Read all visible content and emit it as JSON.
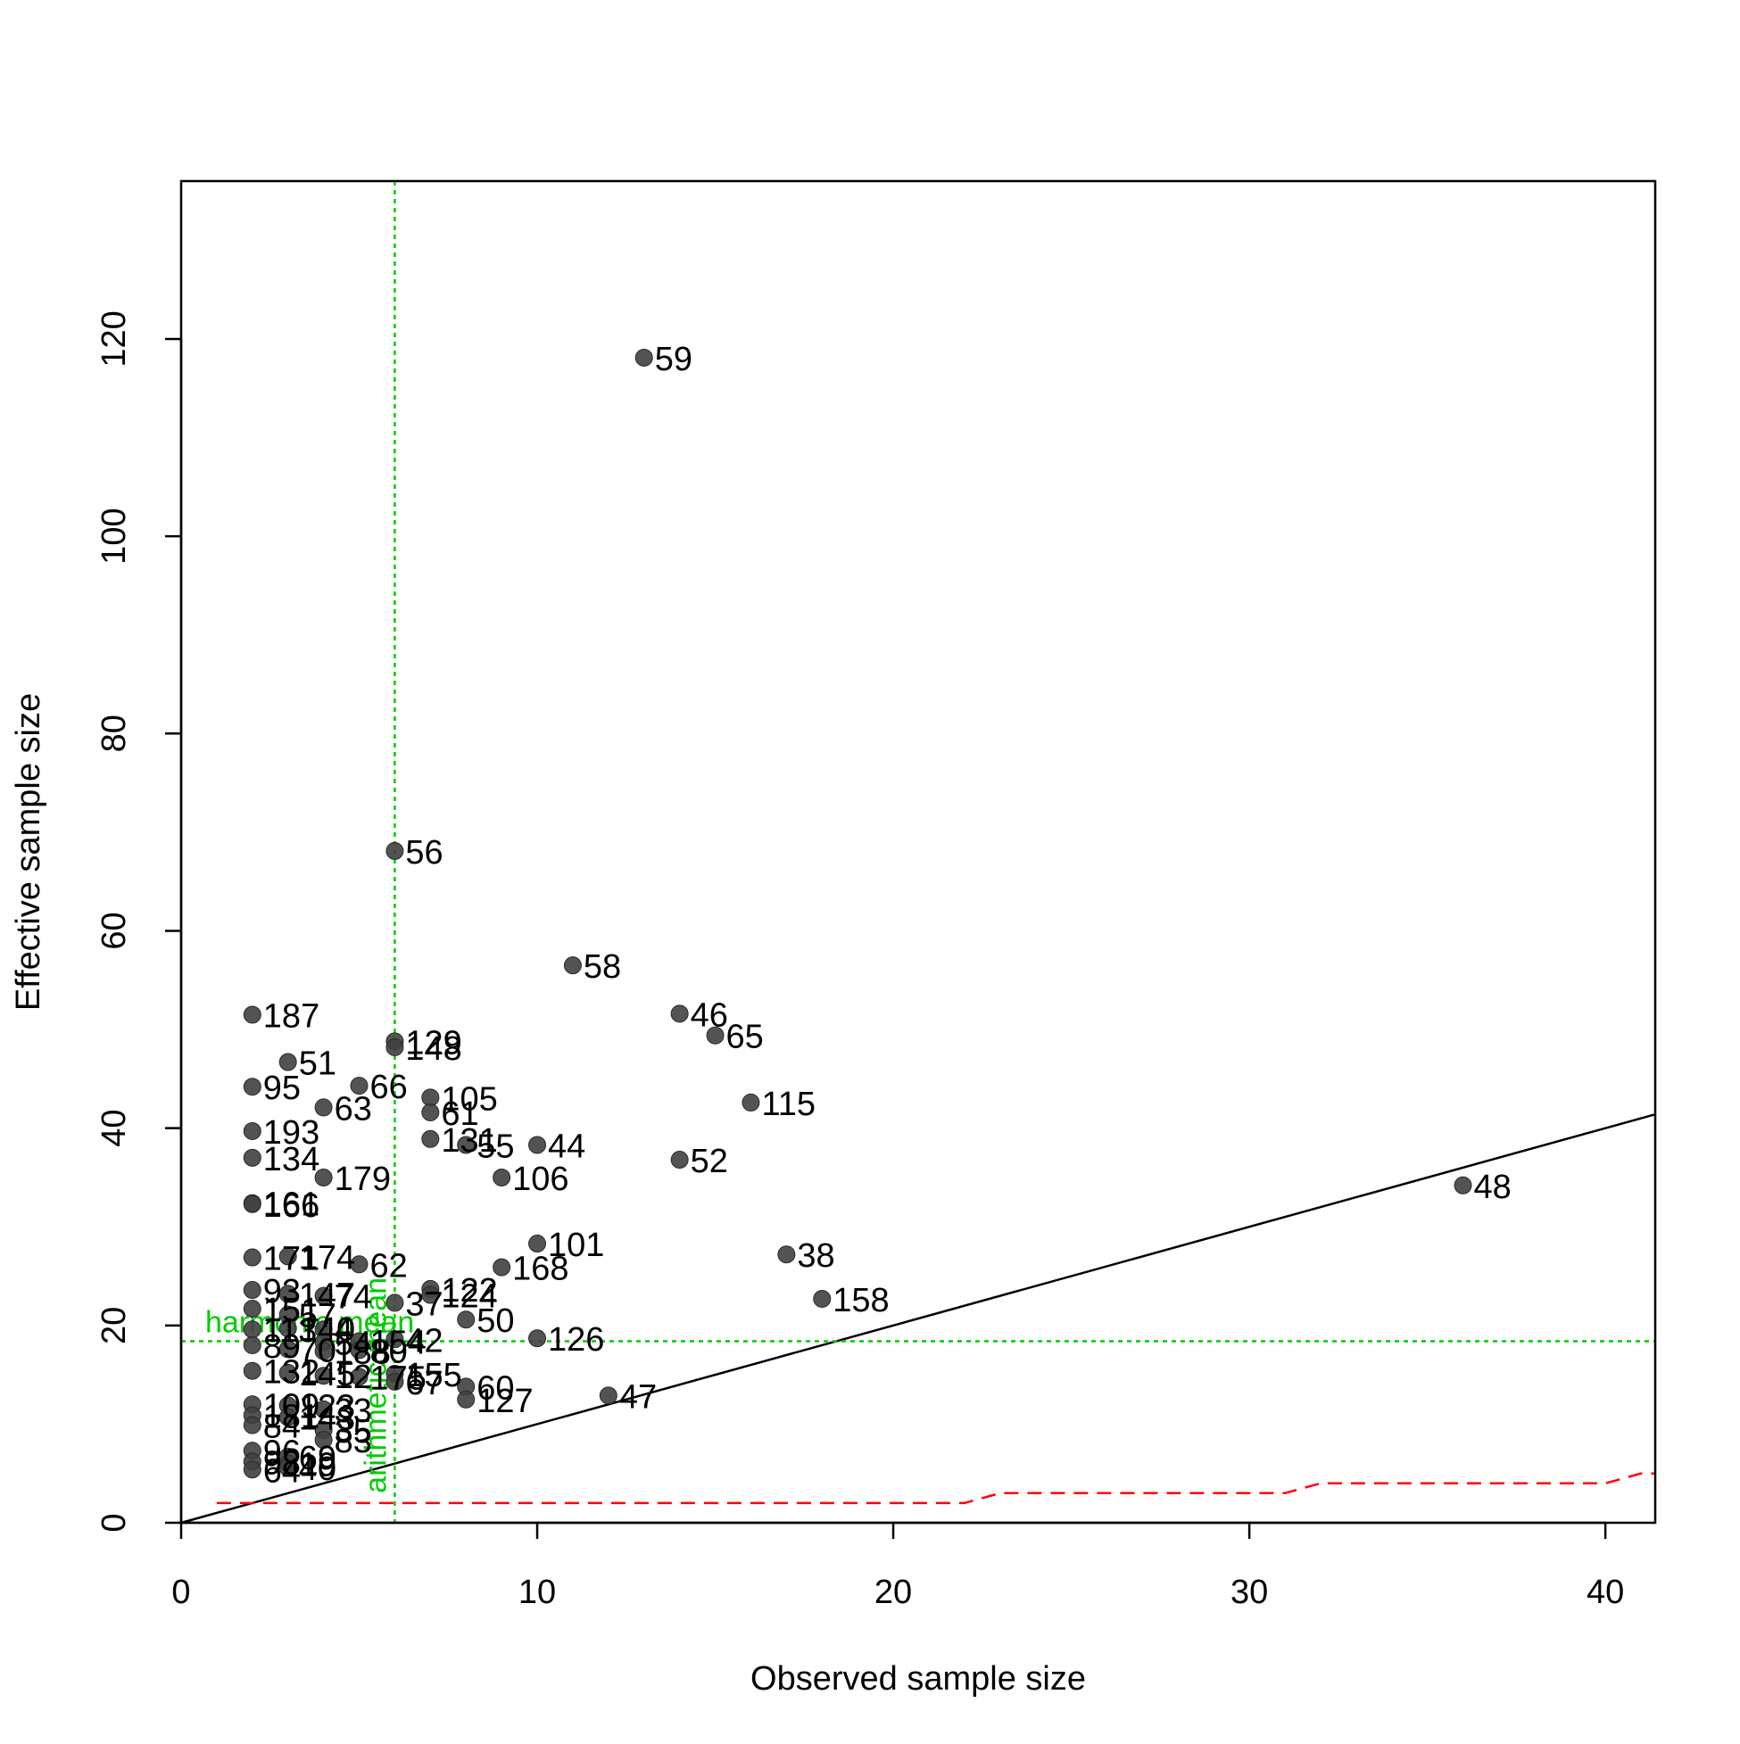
{
  "chart_data": {
    "type": "scatter",
    "title": "",
    "xlabel": "Observed sample size",
    "ylabel": "Effective sample size",
    "xlim": [
      0,
      41.4
    ],
    "ylim": [
      0,
      136
    ],
    "xticks": [
      0,
      10,
      20,
      30,
      40
    ],
    "yticks": [
      0,
      20,
      40,
      60,
      80,
      100,
      120
    ],
    "grid": false,
    "colors": {
      "points": "#404040",
      "identity_line": "#000000",
      "reference_lines": "#00cc00",
      "step_line": "#ff0000"
    },
    "points": [
      {
        "label": "59",
        "x": 13,
        "y": 118.1
      },
      {
        "label": "56",
        "x": 6,
        "y": 68.1
      },
      {
        "label": "58",
        "x": 11,
        "y": 56.5
      },
      {
        "label": "187",
        "x": 2,
        "y": 51.5
      },
      {
        "label": "46",
        "x": 14,
        "y": 51.6
      },
      {
        "label": "65",
        "x": 15,
        "y": 49.4
      },
      {
        "label": "129",
        "x": 6,
        "y": 48.8
      },
      {
        "label": "148",
        "x": 6,
        "y": 48.2
      },
      {
        "label": "51",
        "x": 3,
        "y": 46.7
      },
      {
        "label": "95",
        "x": 2,
        "y": 44.2
      },
      {
        "label": "66",
        "x": 5,
        "y": 44.3
      },
      {
        "label": "105",
        "x": 7,
        "y": 43.1
      },
      {
        "label": "115",
        "x": 16,
        "y": 42.6
      },
      {
        "label": "63",
        "x": 4,
        "y": 42.1
      },
      {
        "label": "61",
        "x": 7,
        "y": 41.6
      },
      {
        "label": "193",
        "x": 2,
        "y": 39.7
      },
      {
        "label": "131",
        "x": 7,
        "y": 38.9
      },
      {
        "label": "55",
        "x": 8,
        "y": 38.3
      },
      {
        "label": "44",
        "x": 10,
        "y": 38.3
      },
      {
        "label": "134",
        "x": 2,
        "y": 37.0
      },
      {
        "label": "52",
        "x": 14,
        "y": 36.8
      },
      {
        "label": "179",
        "x": 4,
        "y": 35.0
      },
      {
        "label": "106",
        "x": 9,
        "y": 35.0
      },
      {
        "label": "48",
        "x": 36,
        "y": 34.2
      },
      {
        "label": "161",
        "x": 2,
        "y": 32.4
      },
      {
        "label": "166",
        "x": 2,
        "y": 32.3
      },
      {
        "label": "101",
        "x": 10,
        "y": 28.3
      },
      {
        "label": "38",
        "x": 17,
        "y": 27.2
      },
      {
        "label": "171",
        "x": 2,
        "y": 26.9
      },
      {
        "label": "174",
        "x": 3,
        "y": 27.0
      },
      {
        "label": "62",
        "x": 5,
        "y": 26.2
      },
      {
        "label": "168",
        "x": 9,
        "y": 25.9
      },
      {
        "label": "93",
        "x": 2,
        "y": 23.6
      },
      {
        "label": "147",
        "x": 3,
        "y": 23.2
      },
      {
        "label": "74",
        "x": 4,
        "y": 23.0
      },
      {
        "label": "122",
        "x": 7,
        "y": 23.7
      },
      {
        "label": "124",
        "x": 7,
        "y": 23.1
      },
      {
        "label": "37",
        "x": 6,
        "y": 22.3
      },
      {
        "label": "158",
        "x": 18,
        "y": 22.7
      },
      {
        "label": "151",
        "x": 2,
        "y": 21.7
      },
      {
        "label": "57",
        "x": 3,
        "y": 21.1
      },
      {
        "label": "50",
        "x": 8,
        "y": 20.6
      },
      {
        "label": "113",
        "x": 2,
        "y": 19.6
      },
      {
        "label": "140",
        "x": 3,
        "y": 19.7
      },
      {
        "label": "4",
        "x": 4,
        "y": 19.6
      },
      {
        "label": "126",
        "x": 10,
        "y": 18.7
      },
      {
        "label": "89",
        "x": 2,
        "y": 18.0
      },
      {
        "label": "54",
        "x": 4,
        "y": 18.3
      },
      {
        "label": "154",
        "x": 5,
        "y": 18.4
      },
      {
        "label": "42",
        "x": 6,
        "y": 18.6
      },
      {
        "label": "70",
        "x": 3,
        "y": 17.6
      },
      {
        "label": "188",
        "x": 4,
        "y": 17.4
      },
      {
        "label": "80",
        "x": 5,
        "y": 17.5
      },
      {
        "label": "132",
        "x": 2,
        "y": 15.4
      },
      {
        "label": "145",
        "x": 3,
        "y": 15.2
      },
      {
        "label": "12",
        "x": 4,
        "y": 14.9
      },
      {
        "label": "175",
        "x": 5,
        "y": 14.8
      },
      {
        "label": "155",
        "x": 6,
        "y": 15.1
      },
      {
        "label": "67",
        "x": 6,
        "y": 14.3
      },
      {
        "label": "60",
        "x": 8,
        "y": 13.8
      },
      {
        "label": "127",
        "x": 8,
        "y": 12.5
      },
      {
        "label": "47",
        "x": 12,
        "y": 12.9
      },
      {
        "label": "109",
        "x": 2,
        "y": 12.0
      },
      {
        "label": "123",
        "x": 3,
        "y": 11.9
      },
      {
        "label": "33",
        "x": 4,
        "y": 11.5
      },
      {
        "label": "181",
        "x": 2,
        "y": 10.9
      },
      {
        "label": "143",
        "x": 3,
        "y": 10.7
      },
      {
        "label": "84",
        "x": 2,
        "y": 9.9
      },
      {
        "label": "35",
        "x": 4,
        "y": 9.4
      },
      {
        "label": "83",
        "x": 4,
        "y": 8.4
      },
      {
        "label": "96",
        "x": 2,
        "y": 7.3
      },
      {
        "label": "69",
        "x": 3,
        "y": 6.7
      },
      {
        "label": "98",
        "x": 2,
        "y": 6.2
      },
      {
        "label": "19",
        "x": 3,
        "y": 6.0
      },
      {
        "label": "64",
        "x": 2,
        "y": 5.4
      },
      {
        "label": "40",
        "x": 3,
        "y": 5.6
      }
    ],
    "identity_line": {
      "slope": 1,
      "intercept": 0
    },
    "reference_lines": [
      {
        "orientation": "horizontal",
        "value": 18.4,
        "label": "harmonic mean"
      },
      {
        "orientation": "vertical",
        "value": 6.0,
        "label": "arithmetic mean"
      }
    ],
    "step_line": {
      "style": "dashed",
      "points": [
        [
          1,
          2
        ],
        [
          22,
          2
        ],
        [
          23,
          3
        ],
        [
          31,
          3
        ],
        [
          32,
          4
        ],
        [
          40,
          4
        ],
        [
          41,
          5
        ],
        [
          41.4,
          5
        ]
      ]
    }
  }
}
